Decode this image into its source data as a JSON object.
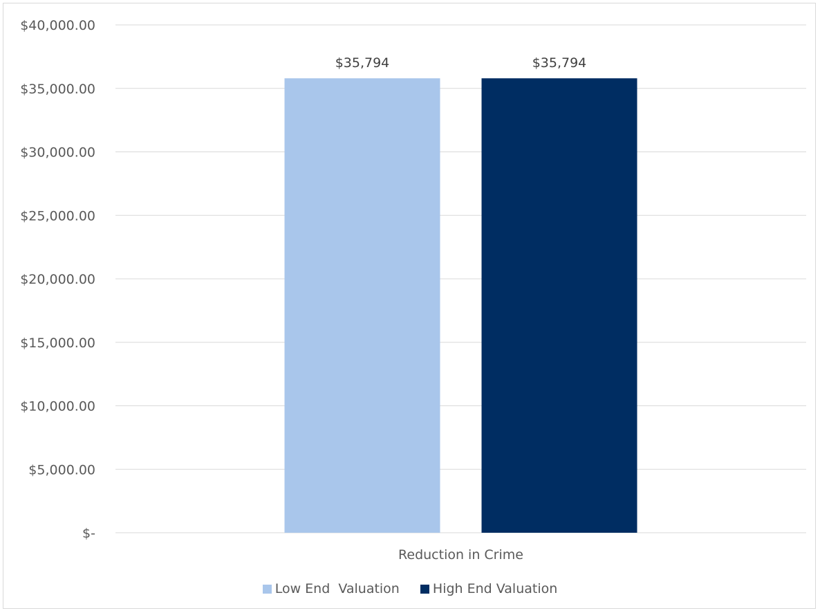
{
  "chart_data": {
    "type": "bar",
    "title": "",
    "xlabel": "",
    "ylabel": "",
    "categories": [
      "Reduction in Crime"
    ],
    "series": [
      {
        "name": "Low End  Valuation",
        "values": [
          35794
        ],
        "color": "#a9c6eb",
        "label": "$35,794"
      },
      {
        "name": "High End Valuation",
        "values": [
          35794
        ],
        "color": "#002d62",
        "label": "$35,794"
      }
    ],
    "ylim": [
      0,
      40000
    ],
    "yticks": [
      {
        "value": 0,
        "label": "$-"
      },
      {
        "value": 5000,
        "label": "$5,000.00"
      },
      {
        "value": 10000,
        "label": "$10,000.00"
      },
      {
        "value": 15000,
        "label": "$15,000.00"
      },
      {
        "value": 20000,
        "label": "$20,000.00"
      },
      {
        "value": 25000,
        "label": "$25,000.00"
      },
      {
        "value": 30000,
        "label": "$30,000.00"
      },
      {
        "value": 35000,
        "label": "$35,000.00"
      },
      {
        "value": 40000,
        "label": "$40,000.00"
      }
    ],
    "grid": true,
    "legend_position": "bottom"
  }
}
